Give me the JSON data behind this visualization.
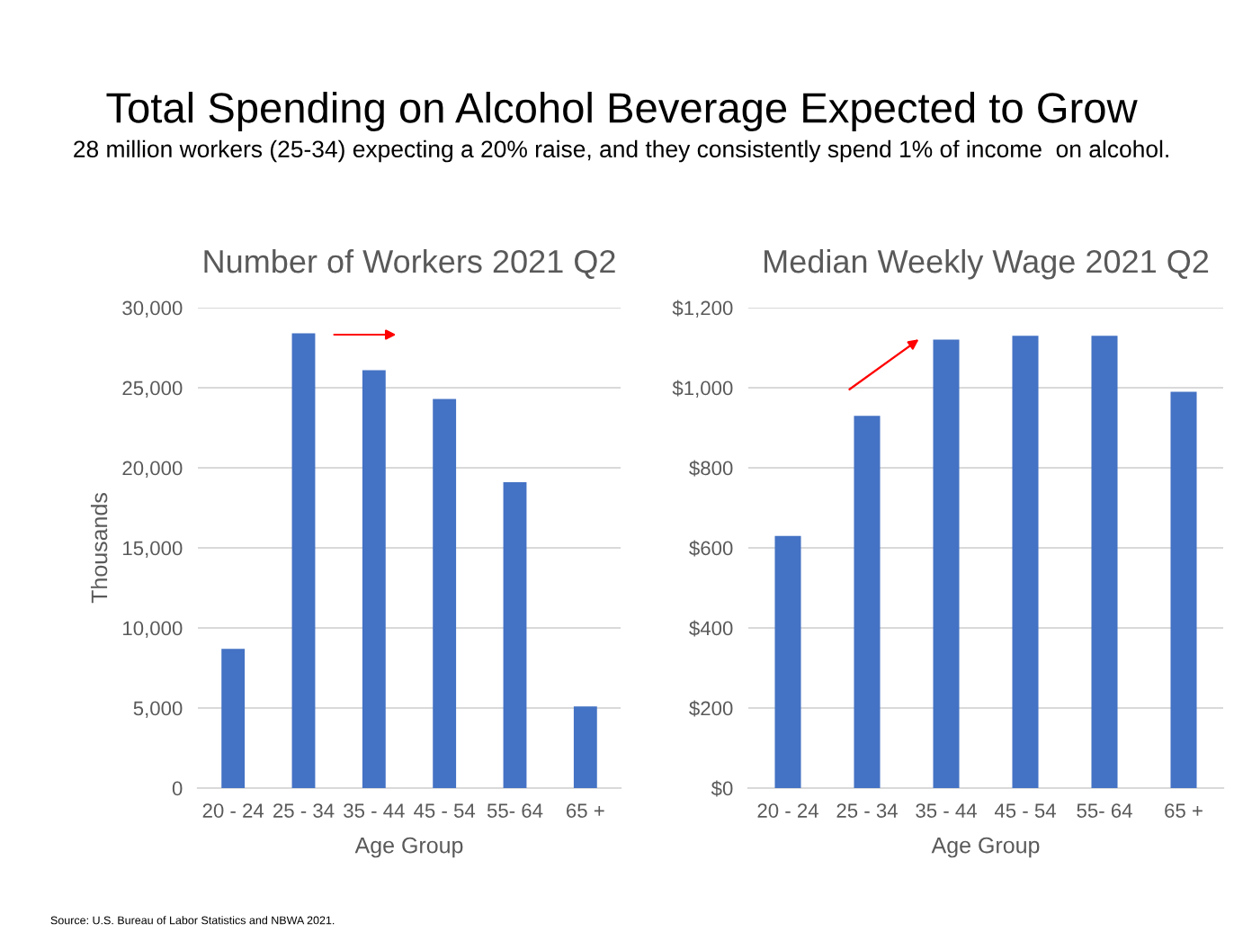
{
  "chart_data": [
    {
      "type": "other",
      "title": "Total Spending on Alcohol Beverage Expected to Grow",
      "subtitle": "28 million workers (25-34) expecting a 20% raise, and they consistently spend 1% of income  on alcohol.",
      "annotations": [
        "Source: U.S. Bureau of Labor Statistics and NBWA 2021."
      ]
    },
    {
      "type": "bar",
      "title": "Number of Workers 2021 Q2",
      "xlabel": "Age Group",
      "ylabel": "Thousands",
      "categories": [
        "20 - 24",
        "25 - 34",
        "35 - 44",
        "45 - 54",
        "55- 64",
        "65 +"
      ],
      "values": [
        8700,
        28400,
        26100,
        24300,
        19100,
        5100
      ],
      "color": "#4472c4",
      "ylim": [
        0,
        30000
      ],
      "yticks": [
        {
          "value": 0,
          "label": "0"
        },
        {
          "value": 5000,
          "label": "5,000"
        },
        {
          "value": 10000,
          "label": "10,000"
        },
        {
          "value": 15000,
          "label": "15,000"
        },
        {
          "value": 20000,
          "label": "20,000"
        },
        {
          "value": 25000,
          "label": "25,000"
        },
        {
          "value": 30000,
          "label": "30,000"
        }
      ],
      "grid": "y"
    },
    {
      "type": "bar",
      "title": "Median Weekly Wage 2021 Q2",
      "xlabel": "Age Group",
      "categories": [
        "20 - 24",
        "25 - 34",
        "35 - 44",
        "45 - 54",
        "55- 64",
        "65 +"
      ],
      "values": [
        630,
        930,
        1120,
        1130,
        1130,
        990
      ],
      "color": "#4472c4",
      "ylim": [
        0,
        1200
      ],
      "yticks": [
        {
          "value": 0,
          "label": "$0"
        },
        {
          "value": 200,
          "label": "$200"
        },
        {
          "value": 400,
          "label": "$400"
        },
        {
          "value": 600,
          "label": "$600"
        },
        {
          "value": 800,
          "label": "$800"
        },
        {
          "value": 1000,
          "label": "$1,000"
        },
        {
          "value": 1200,
          "label": "$1,200"
        }
      ],
      "grid": "y"
    }
  ]
}
